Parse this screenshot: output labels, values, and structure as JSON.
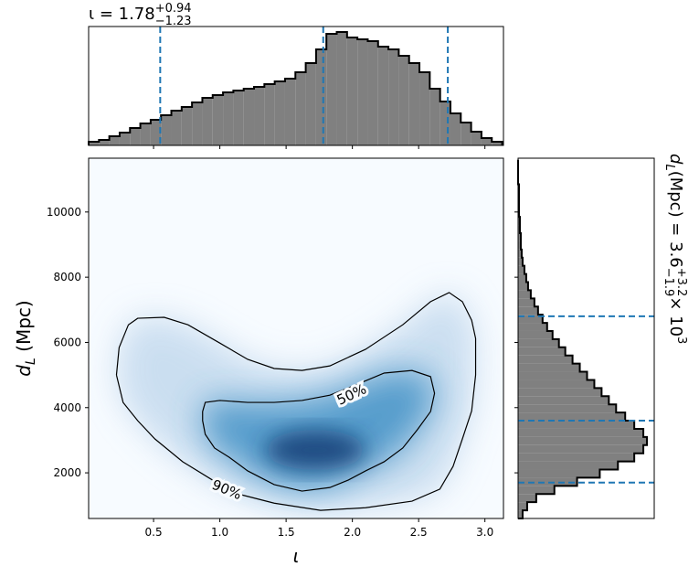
{
  "chart_data": [
    {
      "type": "histogram",
      "title": {
        "main": "ι = 1.78",
        "sup": "+0.94",
        "sub": "−1.23"
      },
      "bins": [
        0.01,
        0.088,
        0.166,
        0.244,
        0.322,
        0.4,
        0.478,
        0.556,
        0.634,
        0.712,
        0.79,
        0.868,
        0.946,
        1.024,
        1.102,
        1.18,
        1.258,
        1.336,
        1.414,
        1.492,
        1.57,
        1.648,
        1.726,
        1.804,
        1.882,
        1.96,
        2.038,
        2.116,
        2.194,
        2.272,
        2.35,
        2.428,
        2.506,
        2.584,
        2.662,
        2.74,
        2.818,
        2.896,
        2.974,
        3.052,
        3.13
      ],
      "counts": [
        4,
        6,
        10,
        14,
        19,
        24,
        28,
        33,
        38,
        42,
        47,
        52,
        55,
        58,
        60,
        62,
        64,
        67,
        70,
        73,
        80,
        90,
        105,
        122,
        124,
        118,
        116,
        114,
        108,
        105,
        98,
        90,
        80,
        62,
        48,
        35,
        25,
        15,
        8,
        4
      ],
      "xlim": [
        0.01,
        3.14
      ],
      "ylim": [
        0,
        130
      ],
      "xticks": [
        0.5,
        1,
        1.5,
        2,
        2.5,
        3
      ],
      "color": "#808080",
      "quantiles": [
        0.55,
        1.78,
        2.72
      ],
      "quantile_color": "#1f77b4"
    },
    {
      "type": "contour",
      "xlabel": "ι",
      "ylabel": {
        "symbol": "d",
        "sub": "L",
        "rest": " (Mpc)"
      },
      "xlim": [
        0.01,
        3.14
      ],
      "ylim": [
        600,
        11650
      ],
      "xticks": [
        0.5,
        {
          "value": 1,
          "label": "1.0"
        },
        1.5,
        {
          "value": 2,
          "label": "2.0"
        },
        2.5,
        {
          "value": 3,
          "label": "3.0"
        }
      ],
      "yticks": [
        2000,
        4000,
        6000,
        8000,
        10000
      ],
      "contours": [
        {
          "label": "50%",
          "x": [
            0.87,
            0.89,
            1.0,
            1.21,
            1.41,
            1.62,
            1.83,
            2.04,
            2.24,
            2.45,
            2.59,
            2.62,
            2.59,
            2.49,
            2.38,
            2.24,
            2.1,
            1.97,
            1.83,
            1.62,
            1.41,
            1.21,
            1.07,
            0.96,
            0.89,
            0.87,
            0.87
          ],
          "y": [
            3880,
            4160,
            4220,
            4160,
            4160,
            4220,
            4380,
            4720,
            5060,
            5140,
            4950,
            4440,
            3880,
            3320,
            2760,
            2340,
            2060,
            1780,
            1550,
            1440,
            1640,
            2060,
            2480,
            2760,
            3180,
            3600,
            3880
          ]
        },
        {
          "label": "90%",
          "x": [
            0.22,
            0.24,
            0.31,
            0.38,
            0.58,
            0.76,
            1.0,
            1.21,
            1.41,
            1.62,
            1.83,
            2.1,
            2.38,
            2.59,
            2.73,
            2.83,
            2.9,
            2.93,
            2.93,
            2.9,
            2.83,
            2.76,
            2.66,
            2.45,
            2.1,
            1.76,
            1.41,
            1.14,
            1.0,
            0.72,
            0.51,
            0.38,
            0.27,
            0.22
          ],
          "y": [
            5000,
            5840,
            6540,
            6740,
            6770,
            6540,
            5980,
            5480,
            5200,
            5140,
            5280,
            5790,
            6540,
            7250,
            7530,
            7250,
            6680,
            6120,
            5000,
            3900,
            3040,
            2200,
            1500,
            1130,
            930,
            850,
            1070,
            1350,
            1640,
            2340,
            3040,
            3600,
            4160,
            5000
          ]
        }
      ],
      "line_color": "#000000"
    },
    {
      "type": "histogram",
      "orientation": "horizontal",
      "title": {
        "symbol": "d",
        "sub": "L",
        "main": " (Mpc) = 3.6",
        "sup": "+3.2",
        "sub2": "−1.9",
        "times": " × 10",
        "exp": "3"
      },
      "bins": [
        600,
        850,
        1100,
        1350,
        1600,
        1850,
        2100,
        2350,
        2600,
        2850,
        3100,
        3350,
        3600,
        3850,
        4100,
        4350,
        4600,
        4850,
        5100,
        5350,
        5600,
        5850,
        6100,
        6350,
        6600,
        6850,
        7100,
        7350,
        7600,
        7850,
        8100,
        8350,
        8600,
        8850,
        9100,
        9350,
        9600,
        9850,
        10100,
        10350,
        10600,
        10850,
        11100,
        11350,
        11600
      ],
      "counts": [
        5,
        10,
        20,
        40,
        65,
        90,
        110,
        128,
        138,
        142,
        138,
        128,
        118,
        108,
        100,
        92,
        84,
        76,
        68,
        60,
        52,
        45,
        38,
        32,
        27,
        22,
        18,
        14,
        11,
        9,
        7,
        5,
        4,
        3,
        3,
        2,
        2,
        1,
        1,
        1,
        1,
        0,
        0,
        0
      ],
      "ylim": [
        600,
        11650
      ],
      "xlim": [
        0,
        150
      ],
      "yticks": [
        2000,
        4000,
        6000,
        8000,
        10000
      ],
      "color": "#808080",
      "quantiles": [
        1700,
        3600,
        6800
      ],
      "quantile_color": "#1f77b4"
    }
  ]
}
